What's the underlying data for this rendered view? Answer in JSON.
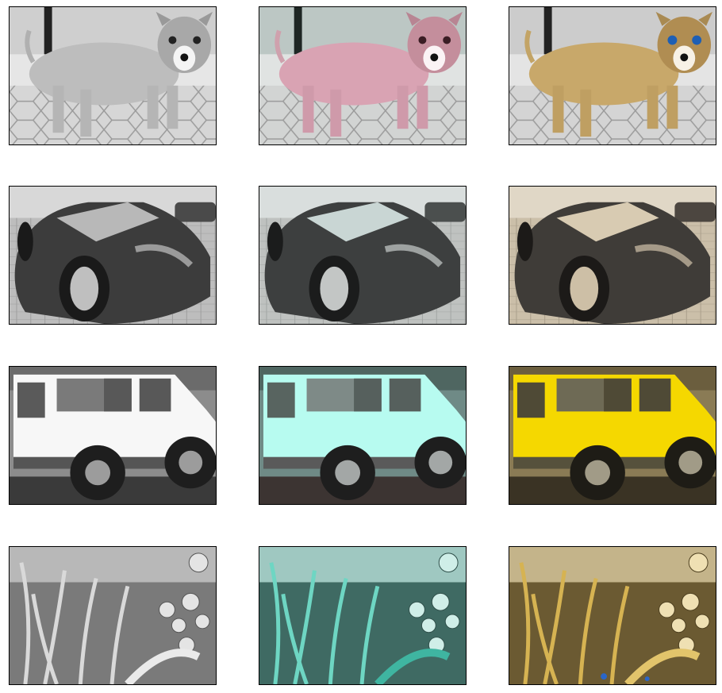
{
  "grid": {
    "rows": [
      {
        "subject": "puppy",
        "panels": [
          {
            "variant": "grayscale",
            "tint": null
          },
          {
            "variant": "pink-tint",
            "tint": "#d9a3b3"
          },
          {
            "variant": "full-color",
            "tint": "#c8a86a",
            "eye_color": "#1e5fb4"
          }
        ]
      },
      {
        "subject": "sports car",
        "panels": [
          {
            "variant": "grayscale",
            "tint": null
          },
          {
            "variant": "cool-tint",
            "tint": "#c9d6d4"
          },
          {
            "variant": "warm-tint",
            "tint": "#d8cbb2"
          }
        ]
      },
      {
        "subject": "suv",
        "panels": [
          {
            "variant": "grayscale",
            "tint": null
          },
          {
            "variant": "cyan-tint",
            "tint": "#b7fbf0"
          },
          {
            "variant": "yellow-tint",
            "tint": "#f5d800"
          }
        ]
      },
      {
        "subject": "plants",
        "panels": [
          {
            "variant": "grayscale",
            "tint": null
          },
          {
            "variant": "teal-tint",
            "tint": "#3fb5a1"
          },
          {
            "variant": "gold-tint",
            "tint": "#d6b352"
          }
        ]
      }
    ]
  }
}
